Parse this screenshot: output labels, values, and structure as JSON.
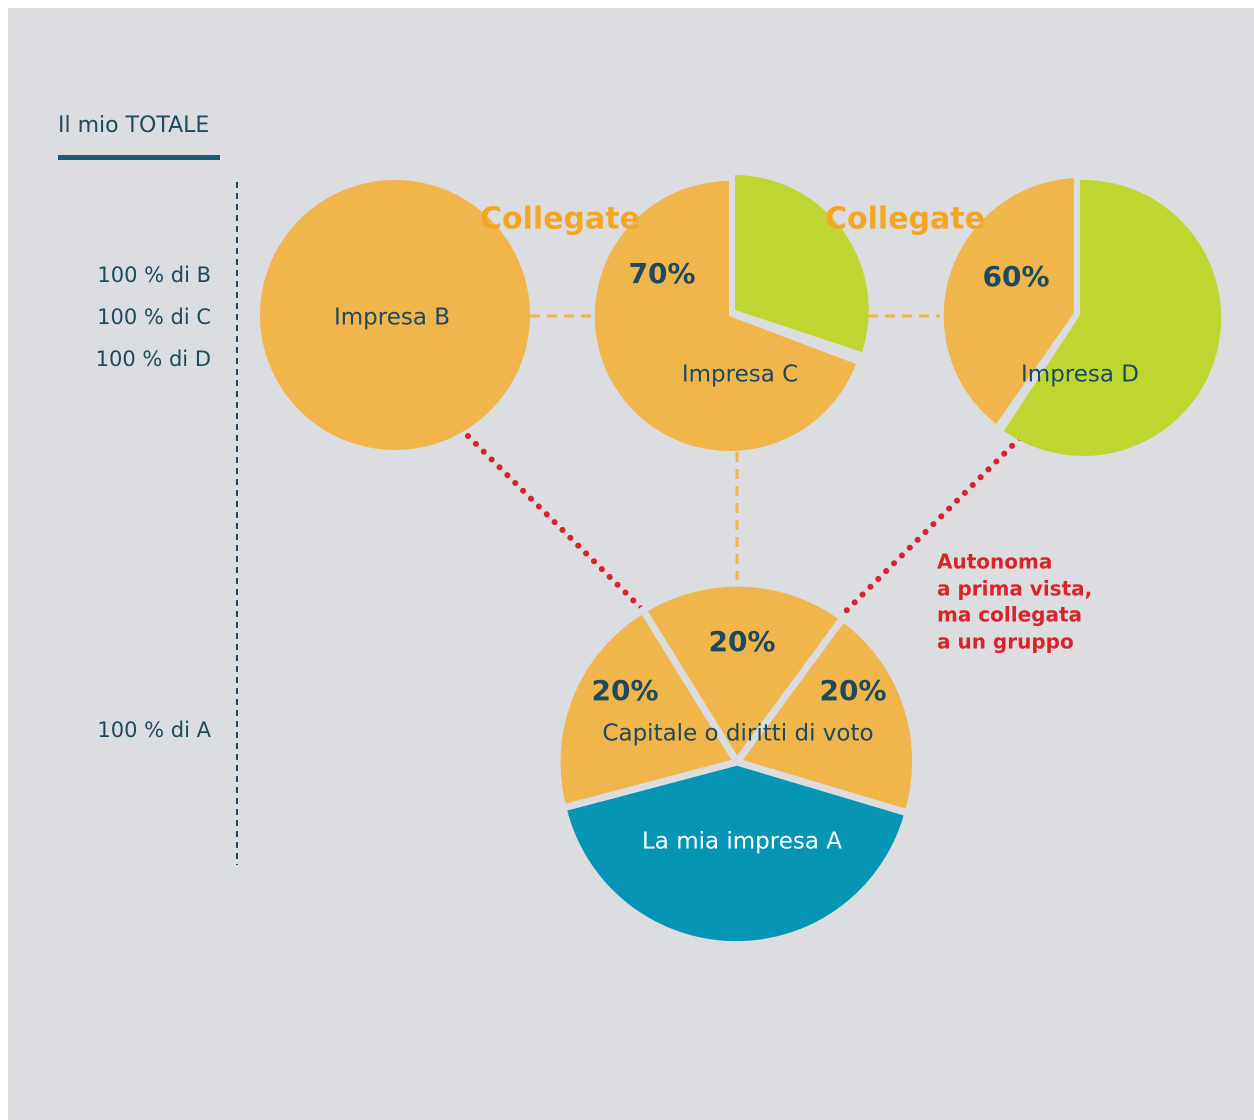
{
  "header": {
    "title": "Il mio TOTALE"
  },
  "totals": [
    "100 % di B",
    "100 % di C",
    "100 % di D",
    "100 % di A"
  ],
  "links": [
    "Collegate",
    "Collegate"
  ],
  "nodes": [
    {
      "label": "Impresa B"
    },
    {
      "label": "Impresa C",
      "share": "70%"
    },
    {
      "label": "Impresa D",
      "share": "60%"
    },
    {
      "label": "La mia impresa A",
      "caption": "Capitale o diritti di voto",
      "shares": [
        "20%",
        "20%",
        "20%"
      ]
    }
  ],
  "note": [
    "Autonoma",
    "a prima vista,",
    "ma collegata",
    "a un gruppo"
  ]
}
